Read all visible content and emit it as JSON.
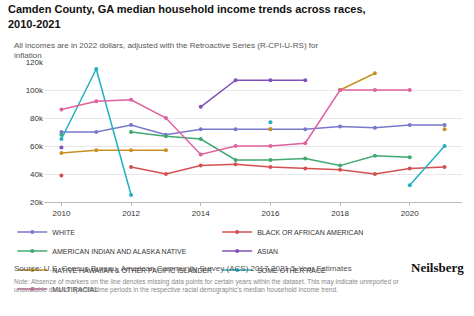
{
  "chart_data": {
    "type": "line",
    "title": "Camden County, GA median household income trends across races,\n2010-2021",
    "subtitle": "All incomes are in 2022 dollars, adjusted with the Retroactive Series (R-CPI-U-RS) for inflation",
    "annotations": [
      "Source: U.S. Census Bureau, American Community Survey (ACS) 2017-2021 5-Year Estimates",
      "Note: Absence of markers on the line denotes missing data points for certain years within the dataset. This may indicate unreported or unavailable data for specific time periods in the respective racial demographic's median household income trend.",
      "Neilsberg"
    ],
    "x": [
      2010,
      2011,
      2012,
      2013,
      2014,
      2015,
      2016,
      2017,
      2018,
      2019,
      2020,
      2021
    ],
    "series": [
      {
        "name": "WHITE",
        "color": "#7878cc",
        "values": [
          70000,
          70000,
          75000,
          68000,
          72000,
          72000,
          72000,
          72000,
          74000,
          73000,
          75000,
          75000
        ]
      },
      {
        "name": "BLACK OR AFRICAN AMERICAN",
        "color": "#d45050",
        "values": [
          39000,
          null,
          45000,
          40000,
          46000,
          47000,
          45000,
          44000,
          43000,
          40000,
          44000,
          45000
        ]
      },
      {
        "name": "AMERICAN INDIAN AND ALASKA NATIVE",
        "color": "#40a870",
        "values": [
          68000,
          null,
          70000,
          67000,
          65000,
          50000,
          50000,
          51000,
          46000,
          53000,
          52000,
          null
        ]
      },
      {
        "name": "ASIAN",
        "color": "#8050b8",
        "values": [
          59000,
          null,
          null,
          null,
          88000,
          107000,
          107000,
          107000,
          null,
          null,
          null,
          null
        ]
      },
      {
        "name": "NATIVE HAWAIIAN & OTHER PACIFIC ISLANDER",
        "color": "#c89020",
        "values": [
          55000,
          57000,
          57000,
          57000,
          null,
          null,
          72000,
          null,
          100000,
          112000,
          null,
          72000
        ]
      },
      {
        "name": "SOME OTHER RACE",
        "color": "#20b0c0",
        "values": [
          65000,
          115000,
          25000,
          null,
          null,
          null,
          77000,
          null,
          null,
          null,
          32000,
          60000
        ]
      },
      {
        "name": "MULTIRACIAL",
        "color": "#e060a0",
        "values": [
          86000,
          92000,
          93000,
          80000,
          54000,
          60000,
          60000,
          62000,
          100000,
          100000,
          100000,
          null
        ]
      }
    ],
    "xlim": [
      2009.5,
      2021.5
    ],
    "xticks": [
      2010,
      2012,
      2014,
      2016,
      2018,
      2020
    ],
    "ylim": [
      20000,
      120000
    ],
    "yticks": [
      {
        "value": 20000,
        "label": "20k"
      },
      {
        "value": 40000,
        "label": "40k"
      },
      {
        "value": 60000,
        "label": "60k"
      },
      {
        "value": 80000,
        "label": "80k"
      },
      {
        "value": 100000,
        "label": "100k"
      },
      {
        "value": 120000,
        "label": "120k"
      }
    ],
    "grid": true,
    "legend": "bottom",
    "marker": "circle"
  }
}
